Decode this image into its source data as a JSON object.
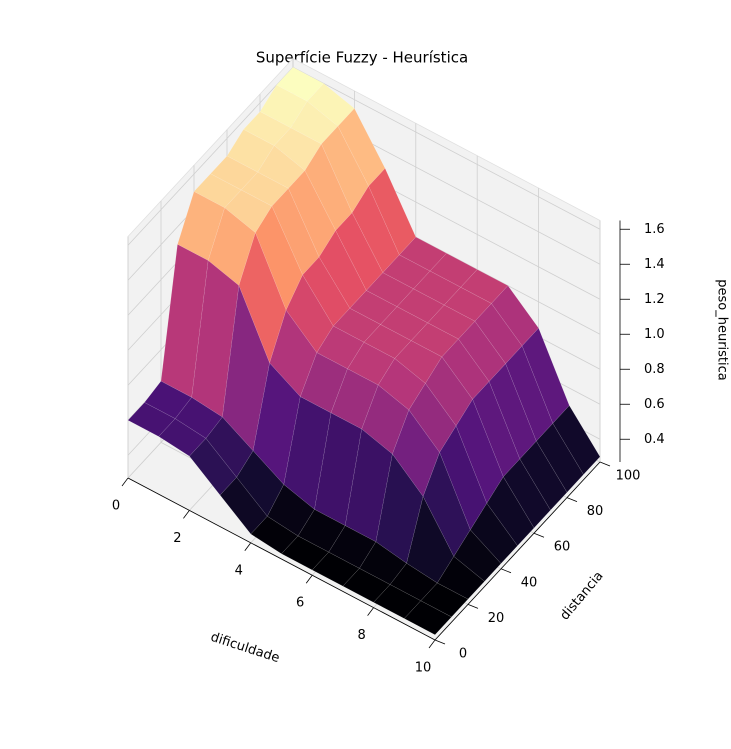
{
  "chart_data": {
    "type": "surface3d",
    "title": "Superfície Fuzzy - Heurística",
    "xlabel": "dificuldade",
    "ylabel": "distancia",
    "zlabel": "peso_heuristica",
    "colormap": "magma",
    "x": [
      0,
      1,
      2,
      3,
      4,
      5,
      6,
      7,
      8,
      9,
      10
    ],
    "y": [
      0,
      10,
      20,
      30,
      40,
      50,
      60,
      70,
      80,
      90,
      100
    ],
    "z": [
      [
        0.6,
        0.6,
        0.62,
        1.3,
        1.5,
        1.5,
        1.5,
        1.55,
        1.55,
        1.6,
        1.6
      ],
      [
        0.6,
        0.6,
        0.62,
        1.3,
        1.5,
        1.5,
        1.5,
        1.55,
        1.55,
        1.6,
        1.6
      ],
      [
        0.58,
        0.58,
        0.6,
        1.25,
        1.45,
        1.5,
        1.5,
        1.5,
        1.55,
        1.55,
        1.55
      ],
      [
        0.45,
        0.45,
        0.5,
        0.9,
        1.1,
        1.2,
        1.2,
        1.25,
        1.25,
        1.3,
        1.3
      ],
      [
        0.32,
        0.32,
        0.4,
        0.8,
        0.95,
        1.0,
        1.0,
        1.0,
        1.0,
        1.0,
        1.0
      ],
      [
        0.3,
        0.3,
        0.35,
        0.8,
        0.95,
        1.0,
        1.0,
        1.0,
        1.0,
        1.0,
        1.0
      ],
      [
        0.3,
        0.3,
        0.35,
        0.8,
        0.95,
        1.0,
        1.0,
        1.0,
        1.0,
        1.0,
        1.0
      ],
      [
        0.3,
        0.3,
        0.35,
        0.75,
        0.9,
        0.95,
        1.0,
        1.0,
        1.0,
        1.0,
        1.0
      ],
      [
        0.3,
        0.3,
        0.32,
        0.6,
        0.75,
        0.8,
        0.85,
        0.85,
        0.85,
        0.85,
        0.85
      ],
      [
        0.3,
        0.3,
        0.3,
        0.35,
        0.4,
        0.45,
        0.5,
        0.5,
        0.5,
        0.5,
        0.5
      ],
      [
        0.3,
        0.3,
        0.3,
        0.3,
        0.3,
        0.3,
        0.3,
        0.3,
        0.3,
        0.3,
        0.3
      ]
    ],
    "xlim": [
      0,
      10
    ],
    "ylim": [
      0,
      100
    ],
    "zlim": [
      0.27,
      1.65
    ],
    "xticks": [
      0,
      2,
      4,
      6,
      8,
      10
    ],
    "yticks": [
      0,
      20,
      40,
      60,
      80,
      100
    ],
    "zticks": [
      0.4,
      0.6,
      0.8,
      {
        "value": 1,
        "label": "1.0"
      },
      1.2,
      1.4,
      1.6
    ],
    "grid": true
  }
}
